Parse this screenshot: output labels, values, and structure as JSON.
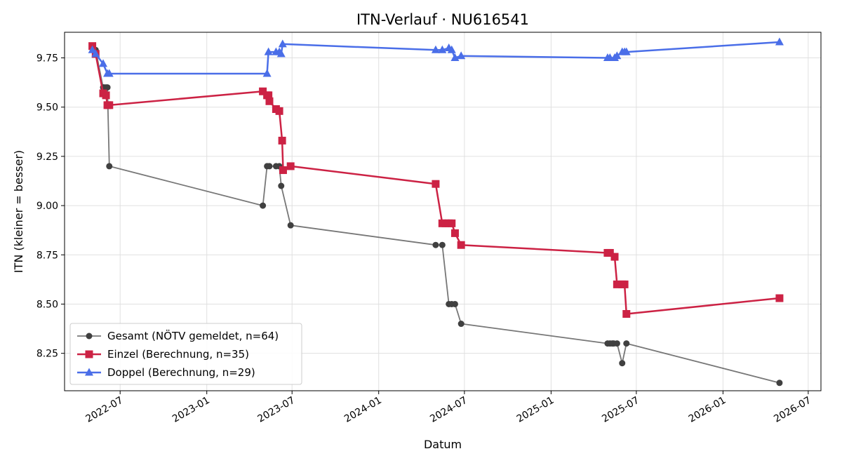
{
  "chart_data": {
    "type": "line",
    "title": "ITN-Verlauf · NU616541",
    "xlabel": "Datum",
    "ylabel": "ITN  (kleiner = besser)",
    "x_is_date": true,
    "xlim": [
      "2022-03-05",
      "2026-07-28"
    ],
    "ylim": [
      8.06,
      9.88
    ],
    "x_ticks": [
      "2022-07-01",
      "2023-01-01",
      "2023-07-01",
      "2024-01-01",
      "2024-07-01",
      "2025-01-01",
      "2025-07-01",
      "2026-01-01",
      "2026-07-01"
    ],
    "x_tick_labels": [
      "2022-07",
      "2023-01",
      "2023-07",
      "2024-01",
      "2024-07",
      "2025-01",
      "2025-07",
      "2026-01",
      "2026-07"
    ],
    "y_ticks": [
      8.25,
      8.5,
      8.75,
      9.0,
      9.25,
      9.5,
      9.75
    ],
    "y_tick_labels": [
      "8.25",
      "8.50",
      "8.75",
      "9.00",
      "9.25",
      "9.50",
      "9.75"
    ],
    "grid": true,
    "legend_position": "lower-left",
    "series": [
      {
        "name": "Gesamt (NÖTV gemeldet, n=64)",
        "color": "#555555",
        "marker": "circle",
        "x": [
          "2022-05-03",
          "2022-05-10",
          "2022-05-26",
          "2022-05-28",
          "2022-06-01",
          "2022-06-04",
          "2022-06-08",
          "2023-04-30",
          "2023-05-09",
          "2023-05-14",
          "2023-05-28",
          "2023-06-04",
          "2023-06-08",
          "2023-06-28",
          "2024-05-01",
          "2024-05-15",
          "2024-05-29",
          "2024-06-04",
          "2024-06-11",
          "2024-06-24",
          "2025-05-01",
          "2025-05-06",
          "2025-05-11",
          "2025-05-14",
          "2025-05-21",
          "2025-06-01",
          "2025-06-10",
          "2026-05-01"
        ],
        "y": [
          9.81,
          9.79,
          9.6,
          9.6,
          9.6,
          9.6,
          9.2,
          9.0,
          9.2,
          9.2,
          9.2,
          9.2,
          9.1,
          8.9,
          8.8,
          8.8,
          8.5,
          8.5,
          8.5,
          8.4,
          8.3,
          8.3,
          8.3,
          8.3,
          8.3,
          8.2,
          8.3,
          8.1
        ]
      },
      {
        "name": "Einzel (Berechnung, n=35)",
        "color": "#cc2244",
        "marker": "square",
        "x": [
          "2022-05-03",
          "2022-05-10",
          "2022-05-26",
          "2022-06-01",
          "2022-06-04",
          "2022-06-08",
          "2023-04-30",
          "2023-05-09",
          "2023-05-12",
          "2023-05-14",
          "2023-05-28",
          "2023-06-04",
          "2023-06-10",
          "2023-06-12",
          "2023-06-28",
          "2024-05-01",
          "2024-05-15",
          "2024-05-22",
          "2024-05-29",
          "2024-06-04",
          "2024-06-11",
          "2024-06-24",
          "2025-05-01",
          "2025-05-06",
          "2025-05-16",
          "2025-05-21",
          "2025-06-01",
          "2025-06-06",
          "2025-06-10",
          "2026-05-01"
        ],
        "y": [
          9.81,
          9.77,
          9.57,
          9.56,
          9.51,
          9.51,
          9.58,
          9.56,
          9.56,
          9.53,
          9.49,
          9.48,
          9.33,
          9.18,
          9.2,
          9.11,
          8.91,
          8.91,
          8.91,
          8.91,
          8.86,
          8.8,
          8.76,
          8.76,
          8.74,
          8.6,
          8.6,
          8.6,
          8.45,
          8.53
        ]
      },
      {
        "name": "Doppel (Berechnung, n=29)",
        "color": "#4a6ee8",
        "marker": "triangle",
        "x": [
          "2022-05-03",
          "2022-05-10",
          "2022-05-26",
          "2022-06-04",
          "2022-06-08",
          "2023-05-09",
          "2023-05-12",
          "2023-05-28",
          "2023-06-04",
          "2023-06-08",
          "2023-06-11",
          "2024-05-01",
          "2024-05-15",
          "2024-05-29",
          "2024-06-04",
          "2024-06-11",
          "2024-06-24",
          "2025-05-01",
          "2025-05-06",
          "2025-05-16",
          "2025-05-21",
          "2025-06-01",
          "2025-06-06",
          "2025-06-10",
          "2026-05-01"
        ],
        "y": [
          9.79,
          9.77,
          9.72,
          9.67,
          9.67,
          9.67,
          9.78,
          9.78,
          9.78,
          9.77,
          9.82,
          9.79,
          9.79,
          9.8,
          9.79,
          9.75,
          9.76,
          9.75,
          9.75,
          9.75,
          9.76,
          9.78,
          9.78,
          9.78,
          9.83
        ]
      }
    ]
  }
}
